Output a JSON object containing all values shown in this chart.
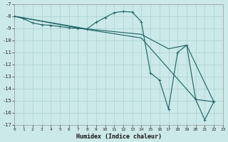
{
  "xlabel": "Humidex (Indice chaleur)",
  "xlim": [
    0,
    23
  ],
  "ylim": [
    -7,
    -17
  ],
  "yticks": [
    -7,
    -8,
    -9,
    -10,
    -11,
    -12,
    -13,
    -14,
    -15,
    -16,
    -17
  ],
  "xticks": [
    0,
    1,
    2,
    3,
    4,
    5,
    6,
    7,
    8,
    9,
    10,
    11,
    12,
    13,
    14,
    15,
    16,
    17,
    18,
    19,
    20,
    21,
    22,
    23
  ],
  "bg_color": "#cce9e9",
  "grid_color": "#afd4d4",
  "line_color": "#226666",
  "series1": [
    [
      0,
      -8.0
    ],
    [
      1,
      -8.2
    ],
    [
      2,
      -8.55
    ],
    [
      3,
      -8.7
    ],
    [
      4,
      -8.75
    ],
    [
      5,
      -8.85
    ],
    [
      6,
      -8.95
    ],
    [
      7,
      -9.0
    ],
    [
      8,
      -9.05
    ],
    [
      9,
      -8.5
    ],
    [
      10,
      -8.1
    ],
    [
      11,
      -7.7
    ],
    [
      12,
      -7.6
    ],
    [
      13,
      -7.65
    ],
    [
      14,
      -8.45
    ],
    [
      15,
      -12.7
    ],
    [
      16,
      -13.3
    ],
    [
      17,
      -15.7
    ],
    [
      18,
      -11.0
    ],
    [
      19,
      -10.4
    ],
    [
      20,
      -14.9
    ],
    [
      21,
      -16.6
    ],
    [
      22,
      -15.1
    ]
  ],
  "series2": [
    [
      0,
      -8.0
    ],
    [
      8,
      -9.05
    ],
    [
      14,
      -9.5
    ],
    [
      17,
      -10.7
    ],
    [
      19,
      -10.4
    ],
    [
      22,
      -15.1
    ]
  ],
  "series3": [
    [
      0,
      -8.0
    ],
    [
      8,
      -9.1
    ],
    [
      14,
      -9.8
    ],
    [
      20,
      -14.9
    ],
    [
      22,
      -15.1
    ]
  ]
}
